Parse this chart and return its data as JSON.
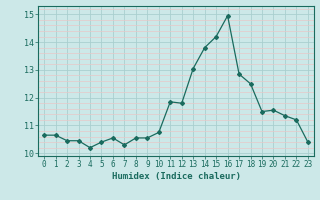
{
  "x": [
    0,
    1,
    2,
    3,
    4,
    5,
    6,
    7,
    8,
    9,
    10,
    11,
    12,
    13,
    14,
    15,
    16,
    17,
    18,
    19,
    20,
    21,
    22,
    23
  ],
  "y": [
    10.65,
    10.65,
    10.45,
    10.45,
    10.2,
    10.4,
    10.55,
    10.3,
    10.55,
    10.55,
    10.75,
    11.85,
    11.8,
    13.05,
    13.8,
    14.2,
    14.95,
    12.85,
    12.5,
    11.5,
    11.55,
    11.35,
    11.2,
    10.4
  ],
  "xlim": [
    -0.5,
    23.5
  ],
  "ylim": [
    9.9,
    15.3
  ],
  "yticks": [
    10,
    11,
    12,
    13,
    14,
    15
  ],
  "xticks": [
    0,
    1,
    2,
    3,
    4,
    5,
    6,
    7,
    8,
    9,
    10,
    11,
    12,
    13,
    14,
    15,
    16,
    17,
    18,
    19,
    20,
    21,
    22,
    23
  ],
  "xlabel": "Humidex (Indice chaleur)",
  "line_color": "#1a6b5e",
  "marker": "D",
  "marker_size": 2.0,
  "bg_color": "#cce8e8",
  "grid_color_major": "#aacfcf",
  "grid_color_minor": "#e8c8c8",
  "spine_color": "#1a6b5e",
  "tick_color": "#1a6b5e",
  "label_color": "#1a6b5e"
}
